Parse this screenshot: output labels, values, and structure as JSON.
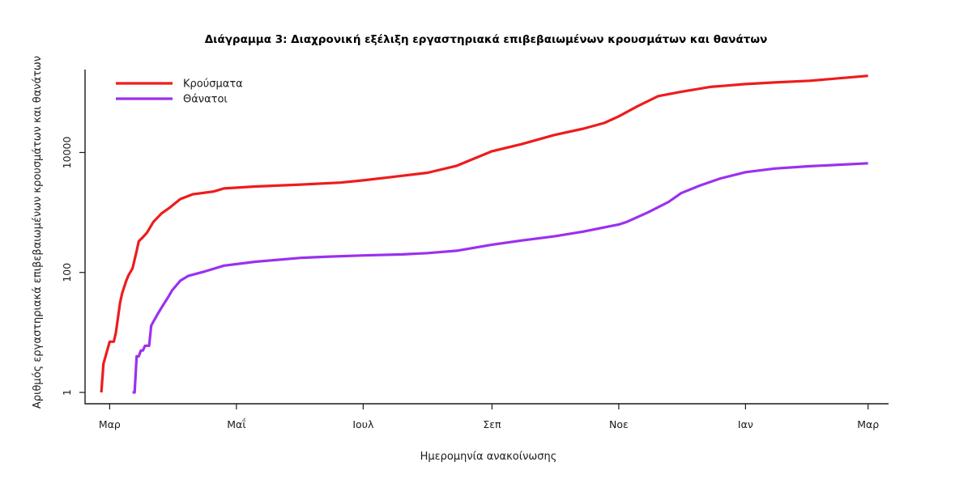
{
  "chart_data": {
    "type": "line",
    "title": "Διάγραμμα 3: Διαχρονική εξέλιξη εργαστηριακά επιβεβαιωμένων κρουσμάτων και θανάτων",
    "xlabel": "Ημερομηνία ανακοίνωσης",
    "ylabel": "Αριθμός εργαστηριακά επιβεβαιωμένων κρουσμάτων και θανάτων",
    "y_scale": "log10",
    "ylim": [
      1,
      200000
    ],
    "yticks": [
      1,
      100,
      10000
    ],
    "ytick_labels": [
      "1",
      "100",
      "10000"
    ],
    "xlim": [
      "2020-02-24",
      "2021-03-05"
    ],
    "xticks": [
      "2020-03-01",
      "2020-05-01",
      "2020-07-01",
      "2020-09-01",
      "2020-11-01",
      "2021-01-01",
      "2021-03-01"
    ],
    "xtick_labels": [
      "Μαρ",
      "Μαΐ",
      "Ιουλ",
      "Σεπ",
      "Νοε",
      "Ιαν",
      "Μαρ"
    ],
    "legend_position": "top-left",
    "grid": false,
    "series": [
      {
        "name": "Κρούσματα",
        "color": "#ee1c1c",
        "points": [
          [
            "2020-02-26",
            1
          ],
          [
            "2020-02-27",
            3
          ],
          [
            "2020-02-28",
            4
          ],
          [
            "2020-03-01",
            7
          ],
          [
            "2020-03-03",
            7
          ],
          [
            "2020-03-04",
            10
          ],
          [
            "2020-03-06",
            31
          ],
          [
            "2020-03-07",
            45
          ],
          [
            "2020-03-09",
            73
          ],
          [
            "2020-03-10",
            89
          ],
          [
            "2020-03-12",
            117
          ],
          [
            "2020-03-14",
            228
          ],
          [
            "2020-03-15",
            331
          ],
          [
            "2020-03-17",
            387
          ],
          [
            "2020-03-19",
            464
          ],
          [
            "2020-03-22",
            695
          ],
          [
            "2020-03-26",
            966
          ],
          [
            "2020-03-30",
            1212
          ],
          [
            "2020-04-04",
            1673
          ],
          [
            "2020-04-10",
            2011
          ],
          [
            "2020-04-20",
            2235
          ],
          [
            "2020-04-25",
            2517
          ],
          [
            "2020-05-10",
            2710
          ],
          [
            "2020-06-01",
            2917
          ],
          [
            "2020-06-20",
            3148
          ],
          [
            "2020-07-01",
            3432
          ],
          [
            "2020-07-15",
            3910
          ],
          [
            "2020-08-01",
            4587
          ],
          [
            "2020-08-15",
            6000
          ],
          [
            "2020-09-01",
            10500
          ],
          [
            "2020-09-15",
            13700
          ],
          [
            "2020-10-01",
            19600
          ],
          [
            "2020-10-15",
            25000
          ],
          [
            "2020-10-25",
            31000
          ],
          [
            "2020-11-01",
            40000
          ],
          [
            "2020-11-10",
            59000
          ],
          [
            "2020-11-20",
            87000
          ],
          [
            "2020-12-01",
            103000
          ],
          [
            "2020-12-15",
            124000
          ],
          [
            "2021-01-01",
            138000
          ],
          [
            "2021-01-15",
            147000
          ],
          [
            "2021-02-01",
            157000
          ],
          [
            "2021-03-01",
            190000
          ]
        ]
      },
      {
        "name": "Θάνατοι",
        "color": "#9b30ef",
        "points": [
          [
            "2020-03-12",
            1
          ],
          [
            "2020-03-13",
            1
          ],
          [
            "2020-03-14",
            4
          ],
          [
            "2020-03-15",
            4
          ],
          [
            "2020-03-16",
            5
          ],
          [
            "2020-03-17",
            5
          ],
          [
            "2020-03-18",
            6
          ],
          [
            "2020-03-20",
            6
          ],
          [
            "2020-03-21",
            13
          ],
          [
            "2020-03-24",
            20
          ],
          [
            "2020-03-26",
            26
          ],
          [
            "2020-03-29",
            38
          ],
          [
            "2020-03-31",
            50
          ],
          [
            "2020-04-04",
            73
          ],
          [
            "2020-04-08",
            88
          ],
          [
            "2020-04-15",
            102
          ],
          [
            "2020-04-25",
            130
          ],
          [
            "2020-05-10",
            151
          ],
          [
            "2020-06-01",
            175
          ],
          [
            "2020-06-15",
            184
          ],
          [
            "2020-07-01",
            192
          ],
          [
            "2020-07-20",
            200
          ],
          [
            "2020-08-01",
            210
          ],
          [
            "2020-08-15",
            230
          ],
          [
            "2020-09-01",
            290
          ],
          [
            "2020-09-15",
            340
          ],
          [
            "2020-10-01",
            400
          ],
          [
            "2020-10-15",
            480
          ],
          [
            "2020-11-01",
            630
          ],
          [
            "2020-11-05",
            700
          ],
          [
            "2020-11-15",
            1000
          ],
          [
            "2020-11-25",
            1500
          ],
          [
            "2020-12-01",
            2100
          ],
          [
            "2020-12-10",
            2800
          ],
          [
            "2020-12-20",
            3700
          ],
          [
            "2021-01-01",
            4700
          ],
          [
            "2021-01-15",
            5400
          ],
          [
            "2021-02-01",
            5900
          ],
          [
            "2021-03-01",
            6600
          ]
        ]
      }
    ]
  }
}
